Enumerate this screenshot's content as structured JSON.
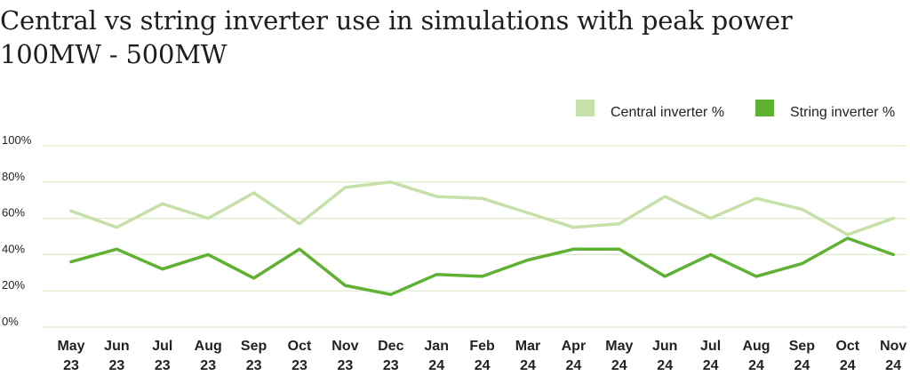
{
  "title": "Central vs string inverter use in simulations with peak power 100MW - 500MW",
  "colors": {
    "central": "#c5e0a8",
    "string": "#5eb133",
    "grid": "#dcecc9",
    "text": "#222222"
  },
  "chart_data": {
    "type": "line",
    "categories": [
      "May 23",
      "Jun 23",
      "Jul 23",
      "Aug 23",
      "Sep 23",
      "Oct 23",
      "Nov 23",
      "Dec 23",
      "Jan 24",
      "Feb 24",
      "Mar 24",
      "Apr 24",
      "May 24",
      "Jun 24",
      "Jul 24",
      "Aug 24",
      "Sep 24",
      "Oct 24",
      "Nov 24"
    ],
    "category_lines": [
      [
        "May",
        "23"
      ],
      [
        "Jun",
        "23"
      ],
      [
        "Jul",
        "23"
      ],
      [
        "Aug",
        "23"
      ],
      [
        "Sep",
        "23"
      ],
      [
        "Oct",
        "23"
      ],
      [
        "Nov",
        "23"
      ],
      [
        "Dec",
        "23"
      ],
      [
        "Jan",
        "24"
      ],
      [
        "Feb",
        "24"
      ],
      [
        "Mar",
        "24"
      ],
      [
        "Apr",
        "24"
      ],
      [
        "May",
        "24"
      ],
      [
        "Jun",
        "24"
      ],
      [
        "Jul",
        "24"
      ],
      [
        "Aug",
        "24"
      ],
      [
        "Sep",
        "24"
      ],
      [
        "Oct",
        "24"
      ],
      [
        "Nov",
        "24"
      ]
    ],
    "yticks": [
      "0%",
      "20%",
      "40%",
      "60%",
      "80%",
      "100%"
    ],
    "ylim": [
      0,
      100
    ],
    "legend_position": "top-right",
    "grid": true,
    "series": [
      {
        "name": "Central inverter %",
        "color_key": "central",
        "values": [
          64,
          55,
          68,
          60,
          74,
          57,
          77,
          80,
          72,
          71,
          63,
          55,
          57,
          72,
          60,
          71,
          65,
          51,
          60
        ]
      },
      {
        "name": "String inverter %",
        "color_key": "string",
        "values": [
          36,
          43,
          32,
          40,
          27,
          43,
          23,
          18,
          29,
          28,
          37,
          43,
          43,
          28,
          40,
          28,
          35,
          49,
          40
        ]
      }
    ]
  }
}
